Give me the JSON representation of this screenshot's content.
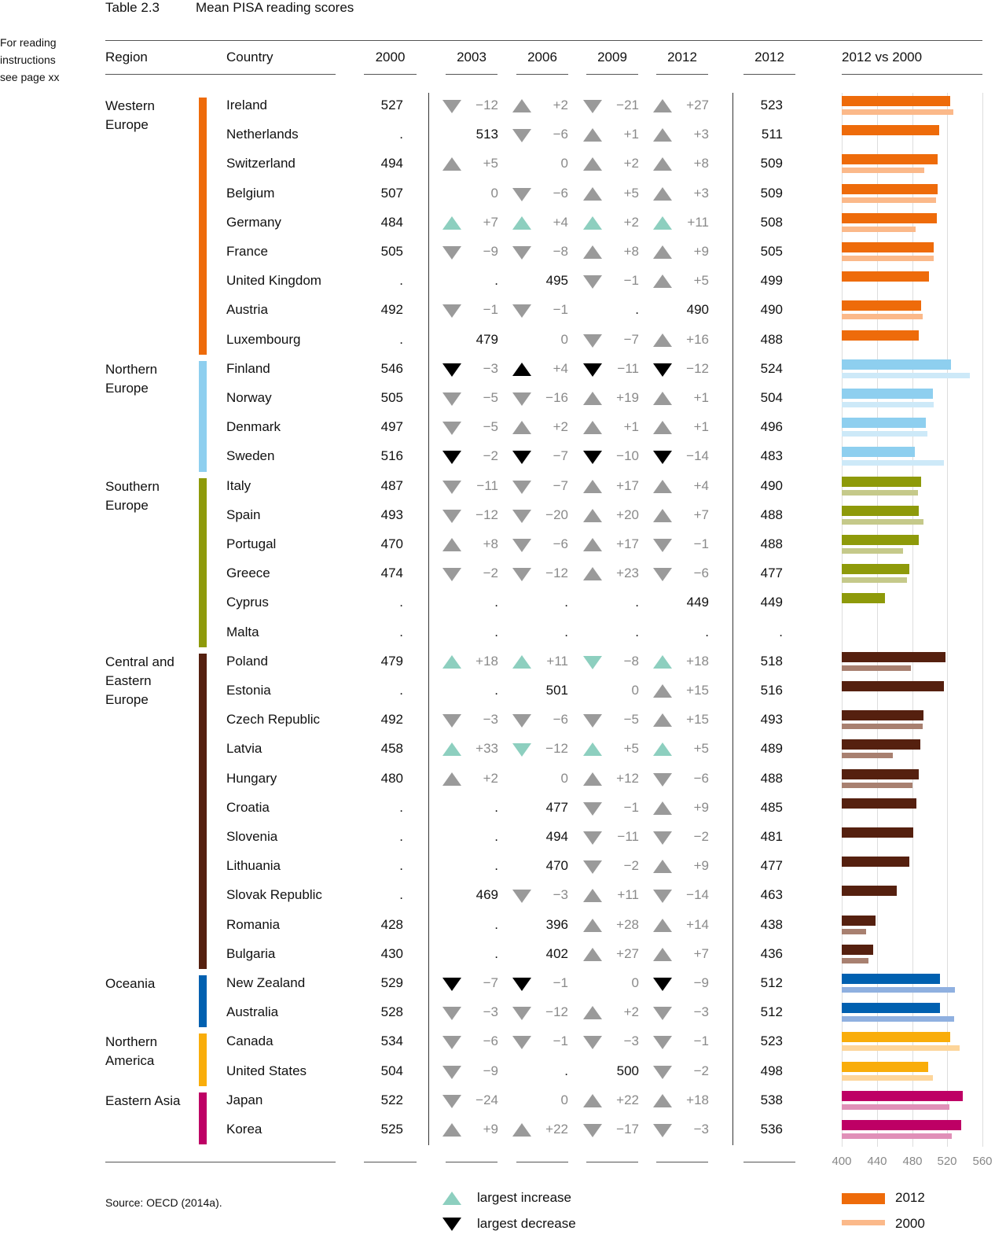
{
  "header": {
    "table_no": "Table 2.3",
    "title": "Mean PISA reading scores",
    "note": "For reading instructions see page xx"
  },
  "columns": {
    "region": "Region",
    "country": "Country",
    "y2000": "2000",
    "y2003": "2003",
    "y2006": "2006",
    "y2009": "2009",
    "y2012": "2012",
    "score2012": "2012",
    "compare": "2012 vs 2000"
  },
  "arrow_colors": {
    "gray": "#9a9a9a",
    "black": "#000000",
    "teal": "#8dcfbf"
  },
  "regions": [
    {
      "name": "Western Europe",
      "color": "#ee6b0a",
      "light": "#fbb98a",
      "rows": [
        {
          "country": "Ireland",
          "y2000": "527",
          "changes": [
            [
              "down",
              "gray",
              "−12"
            ],
            [
              "up",
              "gray",
              "+2"
            ],
            [
              "down",
              "gray",
              "−21"
            ],
            [
              "up",
              "gray",
              "+27"
            ]
          ],
          "y2012": "523"
        },
        {
          "country": "Netherlands",
          "y2000": ".",
          "changes": [
            [
              "",
              "",
              "513"
            ],
            [
              "down",
              "gray",
              "−6"
            ],
            [
              "up",
              "gray",
              "+1"
            ],
            [
              "up",
              "gray",
              "+3"
            ]
          ],
          "y2012": "511"
        },
        {
          "country": "Switzerland",
          "y2000": "494",
          "changes": [
            [
              "up",
              "gray",
              "+5"
            ],
            [
              "",
              "gray",
              "0"
            ],
            [
              "up",
              "gray",
              "+2"
            ],
            [
              "up",
              "gray",
              "+8"
            ]
          ],
          "y2012": "509"
        },
        {
          "country": "Belgium",
          "y2000": "507",
          "changes": [
            [
              "",
              "gray",
              "0"
            ],
            [
              "down",
              "gray",
              "−6"
            ],
            [
              "up",
              "gray",
              "+5"
            ],
            [
              "up",
              "gray",
              "+3"
            ]
          ],
          "y2012": "509"
        },
        {
          "country": "Germany",
          "y2000": "484",
          "changes": [
            [
              "up",
              "teal",
              "+7"
            ],
            [
              "up",
              "teal",
              "+4"
            ],
            [
              "up",
              "teal",
              "+2"
            ],
            [
              "up",
              "teal",
              "+11"
            ]
          ],
          "y2012": "508"
        },
        {
          "country": "France",
          "y2000": "505",
          "changes": [
            [
              "down",
              "gray",
              "−9"
            ],
            [
              "down",
              "gray",
              "−8"
            ],
            [
              "up",
              "gray",
              "+8"
            ],
            [
              "up",
              "gray",
              "+9"
            ]
          ],
          "y2012": "505"
        },
        {
          "country": "United Kingdom",
          "y2000": ".",
          "changes": [
            [
              "",
              "",
              "."
            ],
            [
              "",
              "",
              "495"
            ],
            [
              "down",
              "gray",
              "−1"
            ],
            [
              "up",
              "gray",
              "+5"
            ]
          ],
          "y2012": "499"
        },
        {
          "country": "Austria",
          "y2000": "492",
          "changes": [
            [
              "down",
              "gray",
              "−1"
            ],
            [
              "down",
              "gray",
              "−1"
            ],
            [
              "",
              "",
              "."
            ],
            [
              "",
              "",
              "490"
            ]
          ],
          "y2012": "490"
        },
        {
          "country": "Luxembourg",
          "y2000": ".",
          "changes": [
            [
              "",
              "",
              "479"
            ],
            [
              "",
              "gray",
              "0"
            ],
            [
              "down",
              "gray",
              "−7"
            ],
            [
              "up",
              "gray",
              "+16"
            ]
          ],
          "y2012": "488"
        }
      ]
    },
    {
      "name": "Northern Europe",
      "color": "#8ecfef",
      "light": "#cde9f8",
      "rows": [
        {
          "country": "Finland",
          "y2000": "546",
          "changes": [
            [
              "down",
              "black",
              "−3"
            ],
            [
              "up",
              "black",
              "+4"
            ],
            [
              "down",
              "black",
              "−11"
            ],
            [
              "down",
              "black",
              "−12"
            ]
          ],
          "y2012": "524"
        },
        {
          "country": "Norway",
          "y2000": "505",
          "changes": [
            [
              "down",
              "gray",
              "−5"
            ],
            [
              "down",
              "gray",
              "−16"
            ],
            [
              "up",
              "gray",
              "+19"
            ],
            [
              "up",
              "gray",
              "+1"
            ]
          ],
          "y2012": "504"
        },
        {
          "country": "Denmark",
          "y2000": "497",
          "changes": [
            [
              "down",
              "gray",
              "−5"
            ],
            [
              "up",
              "gray",
              "+2"
            ],
            [
              "up",
              "gray",
              "+1"
            ],
            [
              "up",
              "gray",
              "+1"
            ]
          ],
          "y2012": "496"
        },
        {
          "country": "Sweden",
          "y2000": "516",
          "changes": [
            [
              "down",
              "black",
              "−2"
            ],
            [
              "down",
              "black",
              "−7"
            ],
            [
              "down",
              "black",
              "−10"
            ],
            [
              "down",
              "black",
              "−14"
            ]
          ],
          "y2012": "483"
        }
      ]
    },
    {
      "name": "Southern Europe",
      "color": "#8e9a0a",
      "light": "#c5c98a",
      "rows": [
        {
          "country": "Italy",
          "y2000": "487",
          "changes": [
            [
              "down",
              "gray",
              "−11"
            ],
            [
              "down",
              "gray",
              "−7"
            ],
            [
              "up",
              "gray",
              "+17"
            ],
            [
              "up",
              "gray",
              "+4"
            ]
          ],
          "y2012": "490"
        },
        {
          "country": "Spain",
          "y2000": "493",
          "changes": [
            [
              "down",
              "gray",
              "−12"
            ],
            [
              "down",
              "gray",
              "−20"
            ],
            [
              "up",
              "gray",
              "+20"
            ],
            [
              "up",
              "gray",
              "+7"
            ]
          ],
          "y2012": "488"
        },
        {
          "country": "Portugal",
          "y2000": "470",
          "changes": [
            [
              "up",
              "gray",
              "+8"
            ],
            [
              "down",
              "gray",
              "−6"
            ],
            [
              "up",
              "gray",
              "+17"
            ],
            [
              "down",
              "gray",
              "−1"
            ]
          ],
          "y2012": "488"
        },
        {
          "country": "Greece",
          "y2000": "474",
          "changes": [
            [
              "down",
              "gray",
              "−2"
            ],
            [
              "down",
              "gray",
              "−12"
            ],
            [
              "up",
              "gray",
              "+23"
            ],
            [
              "down",
              "gray",
              "−6"
            ]
          ],
          "y2012": "477"
        },
        {
          "country": "Cyprus",
          "y2000": ".",
          "changes": [
            [
              "",
              "",
              "."
            ],
            [
              "",
              "",
              "."
            ],
            [
              "",
              "",
              "."
            ],
            [
              "",
              "",
              "449"
            ]
          ],
          "y2012": "449"
        },
        {
          "country": "Malta",
          "y2000": ".",
          "changes": [
            [
              "",
              "",
              "."
            ],
            [
              "",
              "",
              "."
            ],
            [
              "",
              "",
              "."
            ],
            [
              "",
              "",
              "."
            ]
          ],
          "y2012": "."
        }
      ]
    },
    {
      "name": "Central and Eastern Europe",
      "color": "#55200f",
      "light": "#a88070",
      "rows": [
        {
          "country": "Poland",
          "y2000": "479",
          "changes": [
            [
              "up",
              "teal",
              "+18"
            ],
            [
              "up",
              "teal",
              "+11"
            ],
            [
              "down",
              "teal",
              "−8"
            ],
            [
              "up",
              "teal",
              "+18"
            ]
          ],
          "y2012": "518"
        },
        {
          "country": "Estonia",
          "y2000": ".",
          "changes": [
            [
              "",
              "",
              "."
            ],
            [
              "",
              "",
              "501"
            ],
            [
              "",
              "gray",
              "0"
            ],
            [
              "up",
              "gray",
              "+15"
            ]
          ],
          "y2012": "516"
        },
        {
          "country": "Czech Republic",
          "y2000": "492",
          "changes": [
            [
              "down",
              "gray",
              "−3"
            ],
            [
              "down",
              "gray",
              "−6"
            ],
            [
              "down",
              "gray",
              "−5"
            ],
            [
              "up",
              "gray",
              "+15"
            ]
          ],
          "y2012": "493"
        },
        {
          "country": "Latvia",
          "y2000": "458",
          "changes": [
            [
              "up",
              "teal",
              "+33"
            ],
            [
              "down",
              "teal",
              "−12"
            ],
            [
              "up",
              "teal",
              "+5"
            ],
            [
              "up",
              "teal",
              "+5"
            ]
          ],
          "y2012": "489"
        },
        {
          "country": "Hungary",
          "y2000": "480",
          "changes": [
            [
              "up",
              "gray",
              "+2"
            ],
            [
              "",
              "gray",
              "0"
            ],
            [
              "up",
              "gray",
              "+12"
            ],
            [
              "down",
              "gray",
              "−6"
            ]
          ],
          "y2012": "488"
        },
        {
          "country": "Croatia",
          "y2000": ".",
          "changes": [
            [
              "",
              "",
              "."
            ],
            [
              "",
              "",
              "477"
            ],
            [
              "down",
              "gray",
              "−1"
            ],
            [
              "up",
              "gray",
              "+9"
            ]
          ],
          "y2012": "485"
        },
        {
          "country": "Slovenia",
          "y2000": ".",
          "changes": [
            [
              "",
              "",
              "."
            ],
            [
              "",
              "",
              "494"
            ],
            [
              "down",
              "gray",
              "−11"
            ],
            [
              "down",
              "gray",
              "−2"
            ]
          ],
          "y2012": "481"
        },
        {
          "country": "Lithuania",
          "y2000": ".",
          "changes": [
            [
              "",
              "",
              "."
            ],
            [
              "",
              "",
              "470"
            ],
            [
              "down",
              "gray",
              "−2"
            ],
            [
              "up",
              "gray",
              "+9"
            ]
          ],
          "y2012": "477"
        },
        {
          "country": "Slovak Republic",
          "y2000": ".",
          "changes": [
            [
              "",
              "",
              "469"
            ],
            [
              "down",
              "gray",
              "−3"
            ],
            [
              "up",
              "gray",
              "+11"
            ],
            [
              "down",
              "gray",
              "−14"
            ]
          ],
          "y2012": "463"
        },
        {
          "country": "Romania",
          "y2000": "428",
          "changes": [
            [
              "",
              "",
              "."
            ],
            [
              "",
              "",
              "396"
            ],
            [
              "up",
              "gray",
              "+28"
            ],
            [
              "up",
              "gray",
              "+14"
            ]
          ],
          "y2012": "438"
        },
        {
          "country": "Bulgaria",
          "y2000": "430",
          "changes": [
            [
              "",
              "",
              "."
            ],
            [
              "",
              "",
              "402"
            ],
            [
              "up",
              "gray",
              "+27"
            ],
            [
              "up",
              "gray",
              "+7"
            ]
          ],
          "y2012": "436"
        }
      ]
    },
    {
      "name": "Oceania",
      "color": "#0060b0",
      "light": "#8fb0e0",
      "rows": [
        {
          "country": "New Zealand",
          "y2000": "529",
          "changes": [
            [
              "down",
              "black",
              "−7"
            ],
            [
              "down",
              "black",
              "−1"
            ],
            [
              "",
              "gray",
              "0"
            ],
            [
              "down",
              "black",
              "−9"
            ]
          ],
          "y2012": "512"
        },
        {
          "country": "Australia",
          "y2000": "528",
          "changes": [
            [
              "down",
              "gray",
              "−3"
            ],
            [
              "down",
              "gray",
              "−12"
            ],
            [
              "up",
              "gray",
              "+2"
            ],
            [
              "down",
              "gray",
              "−3"
            ]
          ],
          "y2012": "512"
        }
      ]
    },
    {
      "name": "Northern America",
      "color": "#f9ad0a",
      "light": "#fdd59a",
      "rows": [
        {
          "country": "Canada",
          "y2000": "534",
          "changes": [
            [
              "down",
              "gray",
              "−6"
            ],
            [
              "down",
              "gray",
              "−1"
            ],
            [
              "down",
              "gray",
              "−3"
            ],
            [
              "down",
              "gray",
              "−1"
            ]
          ],
          "y2012": "523"
        },
        {
          "country": "United States",
          "y2000": "504",
          "changes": [
            [
              "down",
              "gray",
              "−9"
            ],
            [
              "",
              "",
              "."
            ],
            [
              "",
              "",
              "500"
            ],
            [
              "down",
              "gray",
              "−2"
            ]
          ],
          "y2012": "498"
        }
      ]
    },
    {
      "name": "Eastern Asia",
      "color": "#be0065",
      "light": "#e090b8",
      "rows": [
        {
          "country": "Japan",
          "y2000": "522",
          "changes": [
            [
              "down",
              "gray",
              "−24"
            ],
            [
              "",
              "gray",
              "0"
            ],
            [
              "up",
              "gray",
              "+22"
            ],
            [
              "up",
              "gray",
              "+18"
            ]
          ],
          "y2012": "538"
        },
        {
          "country": "Korea",
          "y2000": "525",
          "changes": [
            [
              "up",
              "gray",
              "+9"
            ],
            [
              "up",
              "gray",
              "+22"
            ],
            [
              "down",
              "gray",
              "−17"
            ],
            [
              "down",
              "gray",
              "−3"
            ]
          ],
          "y2012": "536"
        }
      ]
    }
  ],
  "axis": {
    "ticks": [
      "400",
      "440",
      "480",
      "520",
      "560"
    ],
    "min": 400,
    "max": 560
  },
  "legend": {
    "increase": "largest increase",
    "decrease": "largest decrease",
    "bar2012": "2012",
    "bar2000": "2000"
  },
  "source": "Source: OECD (2014a)."
}
